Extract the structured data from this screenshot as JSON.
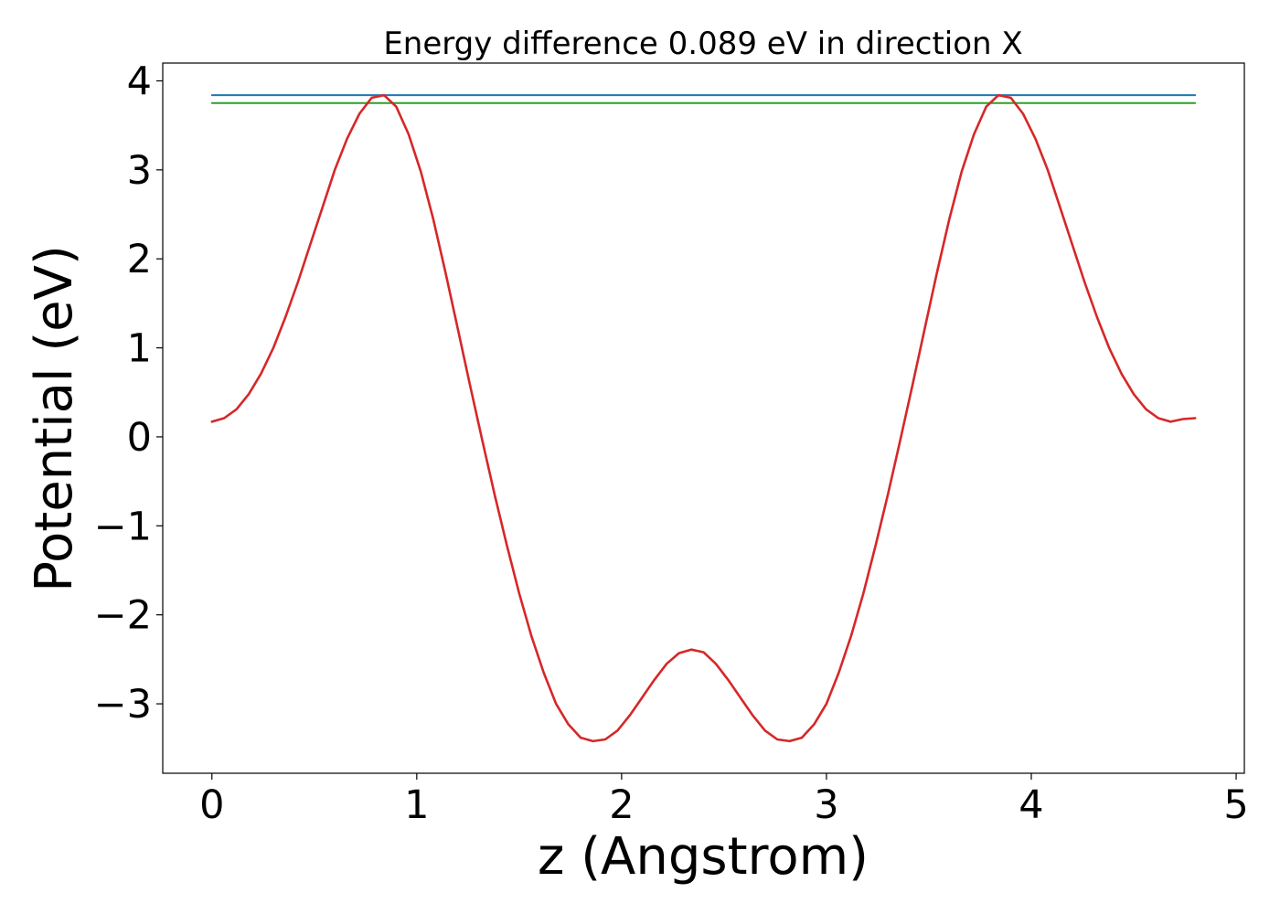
{
  "chart_data": {
    "type": "line",
    "title": "Energy difference 0.089 eV in direction X",
    "xlabel": "z (Angstrom)",
    "ylabel": "Potential (eV)",
    "xlim": [
      -0.24,
      5.04
    ],
    "ylim": [
      -3.78,
      4.2
    ],
    "xticks": [
      0,
      1,
      2,
      3,
      4,
      5
    ],
    "xtick_labels": [
      "0",
      "1",
      "2",
      "3",
      "4",
      "5"
    ],
    "yticks": [
      -3,
      -2,
      -1,
      0,
      1,
      2,
      3,
      4
    ],
    "ytick_labels": [
      "−3",
      "−2",
      "−1",
      "0",
      "1",
      "2",
      "3",
      "4"
    ],
    "grid": false,
    "legend": "none",
    "series": [
      {
        "color": "#1f77b4",
        "x": [
          0,
          4.8
        ],
        "y": [
          3.84,
          3.84
        ]
      },
      {
        "color": "#2ca02c",
        "x": [
          0,
          4.8
        ],
        "y": [
          3.75,
          3.75
        ]
      },
      {
        "color": "#d62728",
        "x": [
          0,
          0.06,
          0.12,
          0.18,
          0.24,
          0.3,
          0.36,
          0.42,
          0.48,
          0.54,
          0.6,
          0.66,
          0.72,
          0.78,
          0.84,
          0.9,
          0.96,
          1.02,
          1.08,
          1.14,
          1.2,
          1.26,
          1.32,
          1.38,
          1.44,
          1.5,
          1.56,
          1.62,
          1.68,
          1.74,
          1.8,
          1.86,
          1.92,
          1.98,
          2.04,
          2.1,
          2.16,
          2.22,
          2.28,
          2.34,
          2.4,
          2.46,
          2.52,
          2.58,
          2.64,
          2.7,
          2.76,
          2.82,
          2.88,
          2.94,
          3.0,
          3.06,
          3.12,
          3.18,
          3.24,
          3.3,
          3.36,
          3.42,
          3.48,
          3.54,
          3.6,
          3.66,
          3.72,
          3.78,
          3.84,
          3.9,
          3.96,
          4.02,
          4.08,
          4.14,
          4.2,
          4.26,
          4.32,
          4.38,
          4.44,
          4.5,
          4.56,
          4.62,
          4.68,
          4.74,
          4.8
        ],
        "y": [
          0.17,
          0.21,
          0.31,
          0.48,
          0.71,
          1.0,
          1.35,
          1.74,
          2.16,
          2.58,
          3.0,
          3.35,
          3.63,
          3.81,
          3.84,
          3.71,
          3.4,
          2.98,
          2.45,
          1.85,
          1.22,
          0.58,
          -0.04,
          -0.65,
          -1.22,
          -1.76,
          -2.24,
          -2.65,
          -3.0,
          -3.23,
          -3.38,
          -3.42,
          -3.4,
          -3.3,
          -3.13,
          -2.93,
          -2.73,
          -2.55,
          -2.43,
          -2.39,
          -2.42,
          -2.55,
          -2.73,
          -2.93,
          -3.13,
          -3.3,
          -3.4,
          -3.42,
          -3.38,
          -3.23,
          -3.0,
          -2.65,
          -2.24,
          -1.76,
          -1.22,
          -0.65,
          -0.04,
          0.58,
          1.22,
          1.85,
          2.45,
          2.98,
          3.4,
          3.71,
          3.84,
          3.81,
          3.63,
          3.35,
          3.0,
          2.58,
          2.16,
          1.74,
          1.35,
          1.0,
          0.71,
          0.48,
          0.31,
          0.21,
          0.17,
          0.2,
          0.21
        ]
      }
    ]
  }
}
